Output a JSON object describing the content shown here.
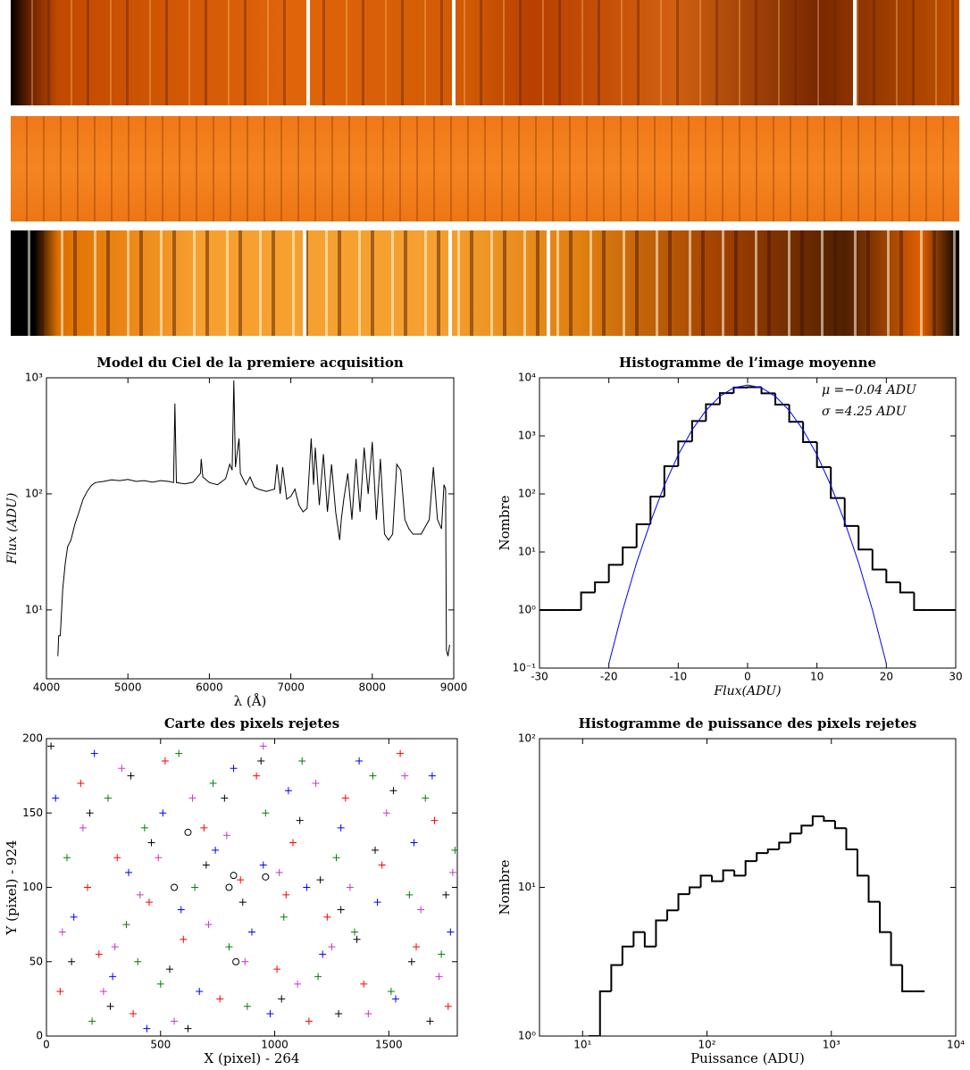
{
  "chart_data": [
    {
      "type": "line",
      "title": "Model du Ciel de la premiere acquisition",
      "xlabel": "λ (Å)",
      "ylabel": "Flux (ADU)",
      "xlim": [
        4000,
        9000
      ],
      "xticks": [
        4000,
        5000,
        6000,
        7000,
        8000,
        9000
      ],
      "ylim": [
        2.55,
        1000
      ],
      "ylog": true,
      "yticks": [
        {
          "value": 10,
          "label": "10¹"
        },
        {
          "value": 100,
          "label": "10²"
        },
        {
          "value": 1000,
          "label": "10³"
        }
      ],
      "x": [
        4140,
        4150,
        4170,
        4200,
        4230,
        4260,
        4300,
        4350,
        4400,
        4450,
        4500,
        4550,
        4600,
        4700,
        4800,
        4900,
        5000,
        5100,
        5200,
        5300,
        5400,
        5500,
        5560,
        5577,
        5595,
        5700,
        5800,
        5890,
        5900,
        5920,
        6000,
        6100,
        6200,
        6250,
        6280,
        6300,
        6320,
        6364,
        6380,
        6450,
        6500,
        6550,
        6600,
        6700,
        6800,
        6830,
        6870,
        6900,
        6950,
        7000,
        7050,
        7100,
        7150,
        7200,
        7250,
        7280,
        7300,
        7350,
        7400,
        7450,
        7500,
        7550,
        7600,
        7620,
        7650,
        7700,
        7750,
        7800,
        7850,
        7900,
        7950,
        8000,
        8050,
        8100,
        8150,
        8200,
        8250,
        8300,
        8350,
        8400,
        8450,
        8500,
        8600,
        8700,
        8750,
        8800,
        8850,
        8880,
        8900,
        8910,
        8930,
        8950
      ],
      "series": [
        {
          "color": "#000000",
          "values": [
            4,
            6,
            6,
            15,
            25,
            35,
            40,
            55,
            70,
            90,
            105,
            118,
            125,
            128,
            132,
            130,
            133,
            128,
            130,
            126,
            130,
            128,
            125,
            600,
            125,
            122,
            126,
            150,
            200,
            140,
            125,
            120,
            135,
            180,
            160,
            950,
            170,
            300,
            150,
            120,
            140,
            115,
            110,
            105,
            110,
            180,
            100,
            170,
            90,
            95,
            110,
            80,
            70,
            75,
            300,
            120,
            250,
            80,
            220,
            70,
            180,
            70,
            40,
            60,
            90,
            150,
            60,
            200,
            70,
            250,
            100,
            280,
            60,
            200,
            45,
            40,
            45,
            180,
            160,
            60,
            50,
            45,
            45,
            60,
            170,
            60,
            50,
            120,
            110,
            4.5,
            4,
            5
          ]
        }
      ]
    },
    {
      "type": "histogram",
      "title": "Histogramme de l’image moyenne",
      "xlabel": "Flux(ADU)",
      "ylabel": "Nombre",
      "annotations": [
        "μ =−0.04 ADU",
        "σ =4.25 ADU"
      ],
      "xlim": [
        -30,
        30
      ],
      "xticks": [
        -30,
        -20,
        -10,
        0,
        10,
        20,
        30
      ],
      "ylim": [
        0.1,
        10000
      ],
      "ylog": true,
      "yticks": [
        {
          "value": 0.1,
          "label": "10⁻¹"
        },
        {
          "value": 1,
          "label": "10⁰"
        },
        {
          "value": 10,
          "label": "10¹"
        },
        {
          "value": 100,
          "label": "10²"
        },
        {
          "value": 1000,
          "label": "10³"
        },
        {
          "value": 10000,
          "label": "10⁴"
        }
      ],
      "color": "#000000",
      "bins": [
        -30,
        -28,
        -26,
        -24,
        -22,
        -20,
        -18,
        -16,
        -14,
        -12,
        -10,
        -8,
        -6,
        -4,
        -2,
        0,
        2,
        4,
        6,
        8,
        10,
        12,
        14,
        16,
        18,
        20,
        22,
        24,
        26,
        28,
        30
      ],
      "counts": [
        1,
        1,
        1,
        2,
        3,
        6,
        12,
        30,
        90,
        300,
        800,
        1800,
        3500,
        5450,
        6800,
        6900,
        5400,
        3450,
        1750,
        780,
        290,
        85,
        28,
        11,
        5,
        3,
        2,
        1,
        1,
        1
      ],
      "fit": {
        "color": "#0000ff",
        "x": [
          -20,
          -18,
          -16,
          -14,
          -12,
          -10,
          -8,
          -6,
          -4,
          -2,
          0,
          2,
          4,
          6,
          8,
          10,
          12,
          14,
          16,
          18,
          20
        ],
        "values": [
          0.12,
          1.0,
          6.5,
          33,
          140,
          470,
          1270,
          2740,
          4780,
          6760,
          7500,
          6760,
          4780,
          2740,
          1270,
          470,
          140,
          33,
          6.5,
          1.0,
          0.12
        ]
      }
    },
    {
      "type": "scatter",
      "title": "Carte des pixels rejetes",
      "xlabel": "X (pixel) - 264",
      "ylabel": "Y (pixel) - 924",
      "xlim": [
        0,
        1800
      ],
      "xticks": [
        0,
        500,
        1000,
        1500
      ],
      "ylim": [
        0,
        200
      ],
      "yticks": [
        0,
        50,
        100,
        150,
        200
      ],
      "series": [
        {
          "color": "#ff0000",
          "marker": "+",
          "x": [
            60,
            150,
            230,
            310,
            380,
            450,
            520,
            600,
            690,
            760,
            850,
            920,
            1010,
            1080,
            1150,
            1230,
            1310,
            1390,
            1470,
            1550,
            1620,
            1700,
            1760,
            180,
            1050
          ],
          "y": [
            30,
            170,
            55,
            120,
            15,
            90,
            185,
            65,
            140,
            25,
            105,
            175,
            45,
            130,
            10,
            80,
            160,
            35,
            115,
            190,
            60,
            145,
            20,
            100,
            95
          ]
        },
        {
          "color": "#008000",
          "marker": "+",
          "x": [
            90,
            200,
            270,
            350,
            430,
            500,
            580,
            650,
            730,
            800,
            880,
            960,
            1040,
            1120,
            1190,
            1270,
            1350,
            1430,
            1510,
            1590,
            1660,
            1730,
            1790,
            400
          ],
          "y": [
            120,
            10,
            160,
            75,
            140,
            35,
            190,
            100,
            170,
            60,
            20,
            150,
            80,
            185,
            40,
            120,
            70,
            175,
            30,
            95,
            160,
            55,
            125,
            50
          ]
        },
        {
          "color": "#0000ff",
          "marker": "+",
          "x": [
            40,
            120,
            210,
            290,
            360,
            440,
            510,
            590,
            670,
            740,
            820,
            900,
            980,
            1060,
            1140,
            1210,
            1290,
            1370,
            1450,
            1530,
            1610,
            1690,
            1770,
            950
          ],
          "y": [
            160,
            80,
            190,
            40,
            110,
            5,
            150,
            85,
            30,
            125,
            180,
            70,
            15,
            165,
            100,
            55,
            140,
            185,
            90,
            25,
            130,
            175,
            70,
            115
          ]
        },
        {
          "color": "#cc33cc",
          "marker": "+",
          "x": [
            70,
            160,
            250,
            330,
            410,
            490,
            560,
            640,
            710,
            790,
            870,
            950,
            1020,
            1100,
            1180,
            1250,
            1330,
            1410,
            1490,
            1570,
            1640,
            1720,
            1780,
            300
          ],
          "y": [
            70,
            140,
            30,
            180,
            95,
            120,
            10,
            160,
            75,
            135,
            50,
            195,
            110,
            35,
            170,
            60,
            100,
            15,
            150,
            175,
            85,
            40,
            110,
            60
          ]
        },
        {
          "color": "#000000",
          "marker": "+",
          "x": [
            20,
            110,
            190,
            280,
            370,
            460,
            540,
            620,
            700,
            780,
            860,
            940,
            1030,
            1110,
            1200,
            1280,
            1360,
            1440,
            1520,
            1600,
            1680,
            1750,
            1290
          ],
          "y": [
            195,
            50,
            150,
            20,
            175,
            130,
            45,
            5,
            115,
            160,
            90,
            185,
            25,
            145,
            105,
            15,
            65,
            125,
            165,
            50,
            10,
            95,
            85
          ]
        },
        {
          "color": "#000000",
          "marker": "o",
          "x": [
            560,
            620,
            800,
            820,
            960,
            830
          ],
          "y": [
            100,
            137,
            100,
            108,
            107,
            50
          ]
        }
      ]
    },
    {
      "type": "histogram",
      "title": "Histogramme de puissance des pixels rejetes",
      "xlabel": "Puissance (ADU)",
      "ylabel": "Nombre",
      "xlim": [
        4.5,
        10000
      ],
      "xlog": true,
      "xticks": [
        {
          "value": 10,
          "label": "10¹"
        },
        {
          "value": 100,
          "label": "10²"
        },
        {
          "value": 1000,
          "label": "10³"
        },
        {
          "value": 10000,
          "label": "10⁴"
        }
      ],
      "ylim": [
        1,
        100
      ],
      "ylog": true,
      "yticks": [
        {
          "value": 1,
          "label": "10⁰"
        },
        {
          "value": 10,
          "label": "10¹"
        },
        {
          "value": 100,
          "label": "10²"
        }
      ],
      "color": "#000000",
      "bins": [
        11.2,
        13.8,
        17.0,
        20.9,
        25.7,
        31.6,
        38.9,
        47.9,
        58.9,
        72.4,
        89.1,
        109.6,
        134.9,
        166.0,
        204.2,
        251.2,
        309.0,
        380.2,
        467.7,
        575.4,
        707.9,
        871.0,
        1071.5,
        1318.3,
        1621.8,
        1995.3,
        2454.7,
        3020.0,
        3715.4,
        4570.9,
        5623.4
      ],
      "counts": [
        1,
        2,
        3,
        4,
        5,
        4,
        6,
        7,
        9,
        10,
        12,
        11,
        13,
        12,
        15,
        17,
        18,
        20,
        23,
        26,
        30,
        28,
        25,
        18,
        12,
        8,
        5,
        3,
        2,
        2
      ]
    }
  ]
}
